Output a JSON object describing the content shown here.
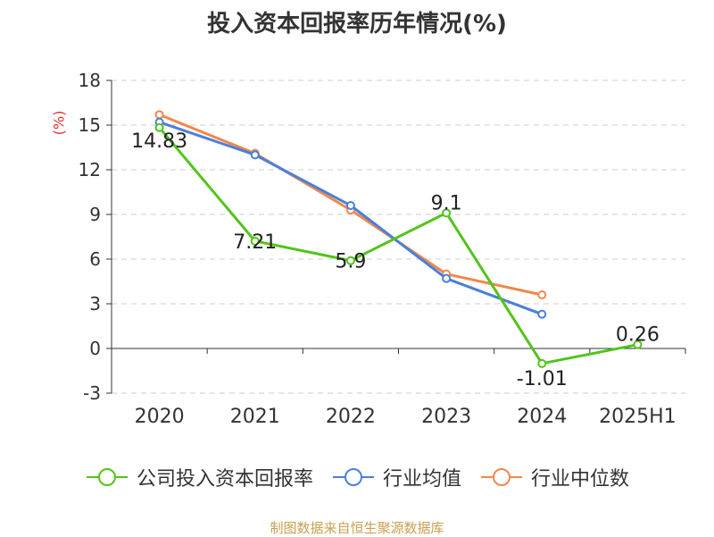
{
  "chart_data": {
    "type": "line",
    "title": "投入资本回报率历年情况(%)",
    "ylabel": "(%)",
    "categories": [
      "2020",
      "2021",
      "2022",
      "2023",
      "2024",
      "2025H1"
    ],
    "ylim": [
      -3,
      18
    ],
    "yticks": [
      -3,
      0,
      3,
      6,
      9,
      12,
      15,
      18
    ],
    "grid": true,
    "legend_position": "bottom",
    "series": [
      {
        "name": "公司投入资本回报率",
        "color": "#52c41a",
        "values": [
          14.83,
          7.21,
          5.9,
          9.1,
          -1.01,
          0.26
        ],
        "data_labels": [
          "14.83",
          "7.21",
          "5.9",
          "9.1",
          "-1.01",
          "0.26"
        ]
      },
      {
        "name": "行业均值",
        "color": "#4a7fdc",
        "values": [
          15.2,
          13.0,
          9.6,
          4.7,
          2.3,
          null
        ]
      },
      {
        "name": "行业中位数",
        "color": "#f0884a",
        "values": [
          15.7,
          13.1,
          9.3,
          5.0,
          3.6,
          null
        ]
      }
    ]
  },
  "source": "制图数据来自恒生聚源数据库"
}
